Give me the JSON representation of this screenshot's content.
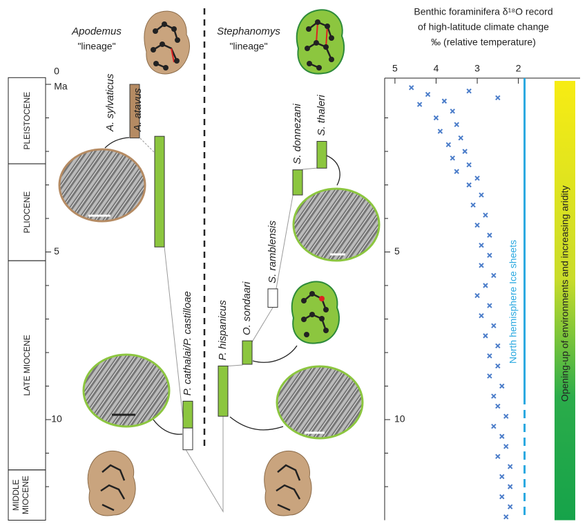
{
  "lineages": [
    {
      "genus": "Apodemus",
      "word": "\"lineage\""
    },
    {
      "genus": "Stephanomys",
      "word": "\"lineage\""
    }
  ],
  "time_scale": {
    "ticks": [
      0,
      5,
      10
    ],
    "unit": "Ma",
    "epochs": [
      {
        "label": "PLEISTOCENE",
        "start": -0.2,
        "end": 2.37
      },
      {
        "label": "PLIOCENE",
        "start": 2.37,
        "end": 5.26
      },
      {
        "label": "LATE MIOCENE",
        "start": 5.26,
        "end": 11.5
      },
      {
        "label": [
          "MIDDLE",
          "MIOCENE"
        ],
        "start": 11.5,
        "end": 13
      }
    ]
  },
  "taxa": [
    {
      "name": "A. sylvaticus",
      "start": 0,
      "end": 1.6,
      "color": "#b58b63"
    },
    {
      "name": "A. atavus",
      "start": 1.55,
      "end": 4.85,
      "color": "#8cc63f"
    },
    {
      "name": "P. cathalai/P. castilloae",
      "start": 9.45,
      "end": 10.25,
      "color": "#8cc63f",
      "uncertain_end": 10.9
    },
    {
      "name": "P. hispanicus",
      "start": 8.4,
      "end": 9.9,
      "color": "#8cc63f"
    },
    {
      "name": "O. sondaari",
      "start": 7.65,
      "end": 8.35,
      "color": "#8cc63f"
    },
    {
      "name": "S. ramblensis",
      "start": 6.1,
      "end": 6.65,
      "color": "#ffffff"
    },
    {
      "name": "S. donnezani",
      "start": 2.55,
      "end": 3.3,
      "color": "#8cc63f"
    },
    {
      "name": "S. thaleri",
      "start": 1.7,
      "end": 2.5,
      "color": "#8cc63f"
    }
  ],
  "chart_data": {
    "type": "scatter",
    "title": [
      "Benthic foraminifera δ¹⁸O record",
      "of high-latitude climate change",
      "‰ (relative temperature)"
    ],
    "color": "#4a7cc9",
    "x": [
      4.6,
      3.2,
      4.2,
      2.5,
      3.8,
      4.4,
      3.6,
      4.0,
      3.5,
      3.9,
      3.4,
      3.7,
      3.3,
      3.6,
      3.2,
      3.5,
      3.0,
      3.2,
      2.9,
      3.1,
      2.8,
      3.0,
      2.7,
      2.9,
      2.7,
      2.9,
      2.6,
      2.8,
      3.0,
      2.7,
      2.9,
      2.6,
      2.8,
      2.5,
      2.7,
      2.5,
      2.7,
      2.4,
      2.6,
      2.5,
      2.3,
      2.6,
      2.4,
      2.3,
      2.5,
      2.2,
      2.4,
      2.2,
      2.4,
      2.2,
      2.3
    ],
    "values": [
      0.1,
      0.2,
      0.3,
      0.4,
      0.5,
      0.6,
      0.8,
      1.0,
      1.2,
      1.4,
      1.6,
      1.8,
      2.0,
      2.2,
      2.4,
      2.6,
      2.8,
      3.0,
      3.3,
      3.6,
      3.9,
      4.2,
      4.5,
      4.8,
      5.1,
      5.4,
      5.7,
      6.0,
      6.3,
      6.6,
      6.9,
      7.2,
      7.5,
      7.8,
      8.1,
      8.4,
      8.7,
      9.0,
      9.3,
      9.6,
      9.9,
      10.2,
      10.5,
      10.8,
      11.1,
      11.4,
      11.7,
      12.0,
      12.3,
      12.6,
      12.9
    ],
    "xlim": [
      5.25,
      0.5
    ],
    "xticks": [
      5,
      4,
      3,
      2
    ],
    "ylim": [
      0,
      13
    ],
    "yticks": [
      5,
      10
    ],
    "yminorticks": [
      1,
      2,
      3,
      4,
      6,
      7,
      8,
      9,
      11,
      12
    ],
    "ice_sheets": {
      "label": "North hemisphere Ice sheets",
      "d18O": 1.85,
      "solid_until": 9.3,
      "color": "#29a8e0"
    },
    "aridity": {
      "label": "Opening-up of environments and increasing aridity"
    }
  }
}
